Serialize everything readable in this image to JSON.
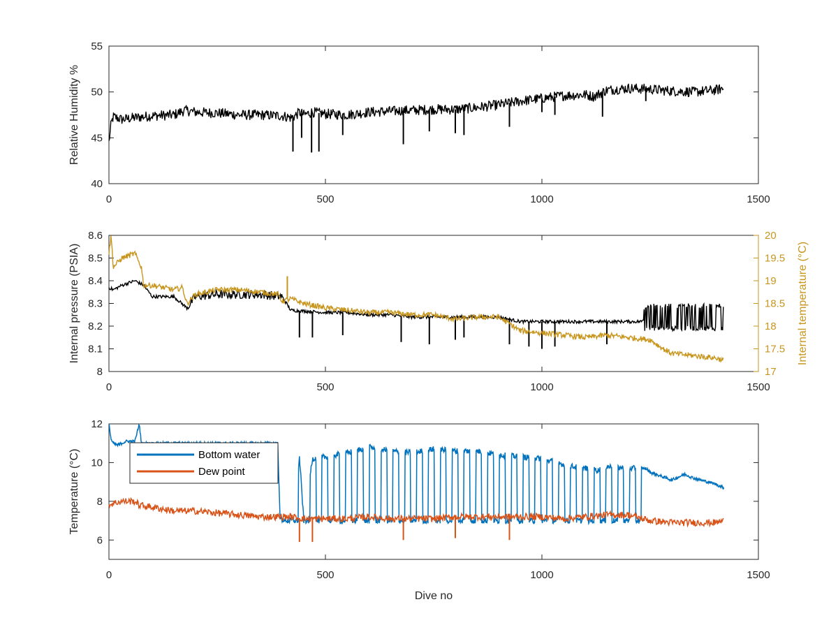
{
  "chart_data": [
    {
      "type": "line",
      "title": "",
      "xlabel": "",
      "ylabel": "Relative Humidity %",
      "xlim": [
        0,
        1500
      ],
      "ylim": [
        40,
        55
      ],
      "xticks": [
        0,
        500,
        1000,
        1500
      ],
      "yticks": [
        40,
        45,
        50,
        55
      ],
      "grid": false,
      "series": [
        {
          "color": "#000000",
          "x": [
            0,
            5,
            10,
            30,
            60,
            100,
            150,
            175,
            200,
            250,
            300,
            350,
            400,
            420,
            430,
            440,
            450,
            470,
            500,
            550,
            600,
            650,
            700,
            750,
            800,
            850,
            900,
            950,
            1000,
            1050,
            1100,
            1120,
            1150,
            1200,
            1250,
            1300,
            1350,
            1400,
            1420
          ],
          "y": [
            44.5,
            46.5,
            47.3,
            47.0,
            47.2,
            47.4,
            47.5,
            48.0,
            47.8,
            47.7,
            47.5,
            47.5,
            47.4,
            47.2,
            47.4,
            47.8,
            47.5,
            47.8,
            47.6,
            47.5,
            47.8,
            47.9,
            48.0,
            48.1,
            48.1,
            48.3,
            48.6,
            49.0,
            49.3,
            49.6,
            49.7,
            49.5,
            50.2,
            50.4,
            50.3,
            50.1,
            50.0,
            50.2,
            50.4
          ]
        }
      ],
      "spikes": [
        {
          "x": 425,
          "y": 43.5
        },
        {
          "x": 445,
          "y": 45.0
        },
        {
          "x": 468,
          "y": 43.4
        },
        {
          "x": 485,
          "y": 43.5
        },
        {
          "x": 540,
          "y": 45.3
        },
        {
          "x": 680,
          "y": 44.3
        },
        {
          "x": 740,
          "y": 45.7
        },
        {
          "x": 800,
          "y": 45.5
        },
        {
          "x": 820,
          "y": 45.3
        },
        {
          "x": 925,
          "y": 46.2
        },
        {
          "x": 1000,
          "y": 47.8
        },
        {
          "x": 1030,
          "y": 47.5
        },
        {
          "x": 1140,
          "y": 47.3
        },
        {
          "x": 1240,
          "y": 49.0
        }
      ]
    },
    {
      "type": "line",
      "title": "",
      "xlabel": "",
      "ylabel": "Internal pressure (PSIA)",
      "y2label": "Internal temperature (°C)",
      "xlim": [
        0,
        1500
      ],
      "ylim": [
        8,
        8.6
      ],
      "y2lim": [
        17,
        20
      ],
      "xticks": [
        0,
        500,
        1000,
        1500
      ],
      "yticks": [
        8,
        8.1,
        8.2,
        8.3,
        8.4,
        8.5,
        8.6
      ],
      "y2ticks": [
        17,
        17.5,
        18,
        18.5,
        19,
        19.5,
        20
      ],
      "grid": false,
      "series": [
        {
          "axis": "left",
          "color": "#000000",
          "x": [
            0,
            10,
            30,
            60,
            80,
            100,
            150,
            180,
            200,
            250,
            300,
            350,
            400,
            420,
            500,
            550,
            600,
            650,
            700,
            750,
            800,
            850,
            900,
            950,
            1000,
            1050,
            1100,
            1150,
            1200,
            1230,
            1240,
            1300,
            1350,
            1400,
            1420
          ],
          "y": [
            8.37,
            8.36,
            8.38,
            8.4,
            8.38,
            8.33,
            8.33,
            8.28,
            8.33,
            8.34,
            8.34,
            8.34,
            8.33,
            8.27,
            8.26,
            8.26,
            8.25,
            8.25,
            8.24,
            8.24,
            8.24,
            8.24,
            8.24,
            8.22,
            8.22,
            8.22,
            8.22,
            8.22,
            8.22,
            8.22,
            8.24,
            8.24,
            8.24,
            8.24,
            8.24
          ]
        },
        {
          "axis": "right",
          "color": "#C8961E",
          "x": [
            0,
            5,
            10,
            30,
            60,
            75,
            80,
            100,
            150,
            170,
            180,
            200,
            250,
            300,
            350,
            390,
            400,
            420,
            450,
            500,
            550,
            600,
            650,
            700,
            750,
            800,
            850,
            900,
            950,
            1000,
            1050,
            1100,
            1150,
            1200,
            1250,
            1280,
            1300,
            1350,
            1400,
            1420
          ],
          "y": [
            19.6,
            20.0,
            19.3,
            19.5,
            19.6,
            19.3,
            18.9,
            18.9,
            18.8,
            18.85,
            18.5,
            18.7,
            18.8,
            18.8,
            18.75,
            18.7,
            18.55,
            18.6,
            18.5,
            18.4,
            18.35,
            18.3,
            18.3,
            18.25,
            18.25,
            18.15,
            18.2,
            18.2,
            17.9,
            17.85,
            17.8,
            17.75,
            17.8,
            17.75,
            17.7,
            17.5,
            17.4,
            17.35,
            17.3,
            17.25
          ]
        }
      ],
      "spikes": [
        {
          "x": 440,
          "y": 8.15
        },
        {
          "x": 470,
          "y": 8.15
        },
        {
          "x": 540,
          "y": 8.16
        },
        {
          "x": 675,
          "y": 8.13
        },
        {
          "x": 740,
          "y": 8.12
        },
        {
          "x": 800,
          "y": 8.14
        },
        {
          "x": 820,
          "y": 8.15
        },
        {
          "x": 925,
          "y": 8.12
        },
        {
          "x": 970,
          "y": 8.11
        },
        {
          "x": 1000,
          "y": 8.1
        },
        {
          "x": 1030,
          "y": 8.11
        },
        {
          "x": 1150,
          "y": 8.12
        }
      ]
    },
    {
      "type": "line",
      "title": "",
      "xlabel": "Dive no",
      "ylabel": "Temperature (°C)",
      "xlim": [
        0,
        1500
      ],
      "ylim": [
        5,
        12
      ],
      "xticks": [
        0,
        500,
        1000,
        1500
      ],
      "yticks": [
        6,
        8,
        10,
        12
      ],
      "grid": false,
      "legend": "top-left",
      "series": [
        {
          "name": "Bottom water",
          "color": "#0072BD",
          "x": [
            0,
            5,
            10,
            20,
            40,
            60,
            70,
            75,
            80,
            390,
            395,
            400,
            410,
            420,
            430,
            440,
            450,
            470,
            500,
            550,
            600,
            650,
            700,
            750,
            800,
            850,
            900,
            950,
            1000,
            1050,
            1070,
            1100,
            1130,
            1150,
            1200,
            1240,
            1250,
            1300,
            1330,
            1350,
            1400,
            1420
          ],
          "y": [
            12.0,
            11.2,
            11.0,
            10.9,
            11.1,
            11.1,
            12.0,
            11.0,
            11.0,
            11.0,
            7.2,
            7.0,
            7.0,
            7.0,
            7.1,
            10.3,
            7.0,
            10.2,
            10.3,
            10.5,
            10.8,
            10.6,
            10.5,
            10.7,
            10.6,
            10.6,
            10.4,
            10.3,
            10.2,
            9.9,
            9.8,
            9.7,
            9.6,
            9.8,
            9.7,
            9.7,
            9.5,
            9.1,
            9.4,
            9.2,
            8.9,
            8.7
          ]
        },
        {
          "name": "Dew point",
          "color": "#D95319",
          "x": [
            0,
            10,
            30,
            60,
            70,
            100,
            150,
            200,
            250,
            300,
            350,
            400,
            420,
            450,
            500,
            550,
            600,
            650,
            700,
            750,
            800,
            850,
            900,
            950,
            1000,
            1050,
            1100,
            1150,
            1200,
            1250,
            1300,
            1350,
            1400,
            1420
          ],
          "y": [
            7.8,
            7.9,
            8.0,
            8.0,
            7.8,
            7.7,
            7.5,
            7.5,
            7.4,
            7.3,
            7.2,
            7.2,
            7.2,
            7.1,
            7.1,
            7.1,
            7.2,
            7.1,
            7.1,
            7.1,
            7.2,
            7.2,
            7.2,
            7.2,
            7.2,
            7.1,
            7.2,
            7.3,
            7.3,
            7.0,
            6.9,
            6.9,
            6.9,
            7.0
          ]
        }
      ],
      "oscillation_range": {
        "x": [
          410,
          1230
        ],
        "low": 7.0,
        "high": 10.7,
        "cycles": 30
      },
      "spikes": [
        {
          "series": "Dew point",
          "x": 440,
          "y": 5.9
        },
        {
          "series": "Dew point",
          "x": 470,
          "y": 5.9
        },
        {
          "series": "Dew point",
          "x": 680,
          "y": 6.0
        },
        {
          "series": "Dew point",
          "x": 800,
          "y": 6.1
        },
        {
          "series": "Dew point",
          "x": 925,
          "y": 6.0
        }
      ]
    }
  ]
}
